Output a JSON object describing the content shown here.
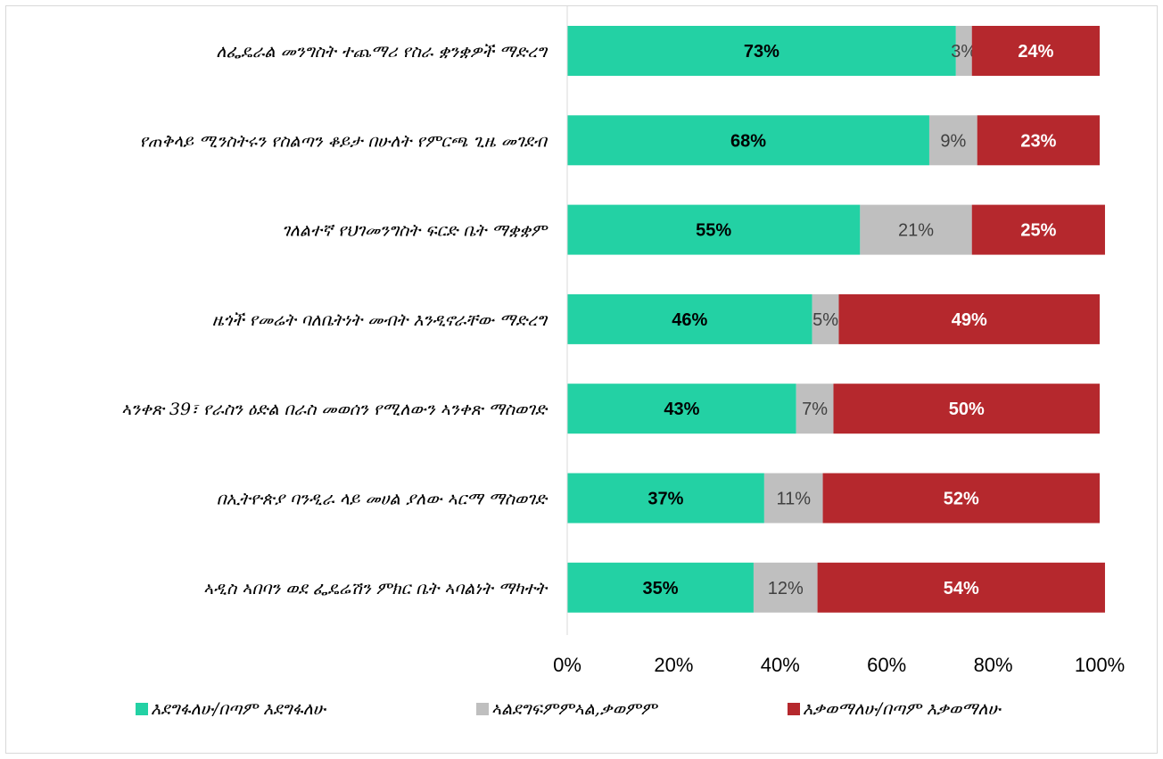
{
  "chart_data": {
    "type": "bar",
    "orientation": "horizontal",
    "stacked": true,
    "categories": [
      "ለፌዴራል መንግስት ተጨማሪ የስራ ቋንቋዎች  ማድረግ",
      "የጠቅላይ ሚንስትሩን የስልጣን ቆይታ በሁለት የምርጫ ጊዜ መገደብ",
      "ገለልተኛ የህገመንግስት ፍርድ ቤት ማቋቋም",
      "ዜጎች የመሬት ባለቤትነት መብት እንዲኖራቸው ማድረግ",
      "ኣንቀጽ 39፣ የራስን ዕድል በራስ መወሰን የሚለውን ኣንቀጽ ማስወገድ",
      "በኢትዮጵያ ባንዲራ ላይ መሀል ያለው ኣርማ ማስወገድ",
      "ኣዲስ ኣበባን ወደ ፌዴሬሽን ምክር ቤት  ኣባልነት ማካተት"
    ],
    "series": [
      {
        "name": "እደግፋለሁ/በጣም እደግፋለሁ",
        "color": "#23d1a4",
        "label_color": "#000000",
        "label_bold": true,
        "values": [
          73,
          68,
          55,
          46,
          43,
          37,
          35
        ]
      },
      {
        "name": "ኣልደግፍምምኣል,ቃወምም",
        "color": "#bfbfbf",
        "label_color": "#404040",
        "label_bold": false,
        "values": [
          3,
          9,
          21,
          5,
          7,
          11,
          12
        ]
      },
      {
        "name": "እቃወማለሁ/በጣም እቃወማለሁ",
        "color": "#b5282d",
        "label_color": "#ffffff",
        "label_bold": true,
        "values": [
          24,
          23,
          25,
          49,
          50,
          52,
          54
        ]
      }
    ],
    "value_labels": [
      [
        "73%",
        "3%",
        "24%"
      ],
      [
        "68%",
        "9%",
        "23%"
      ],
      [
        "55%",
        "21%",
        "25%"
      ],
      [
        "46%",
        "5%",
        "49%"
      ],
      [
        "43%",
        "7%",
        "50%"
      ],
      [
        "37%",
        "11%",
        "52%"
      ],
      [
        "35%",
        "12%",
        "54%"
      ]
    ],
    "x_ticks": [
      "0%",
      "20%",
      "40%",
      "60%",
      "80%",
      "100%"
    ],
    "xlim": [
      0,
      100
    ],
    "grid": false,
    "legend_position": "bottom"
  }
}
